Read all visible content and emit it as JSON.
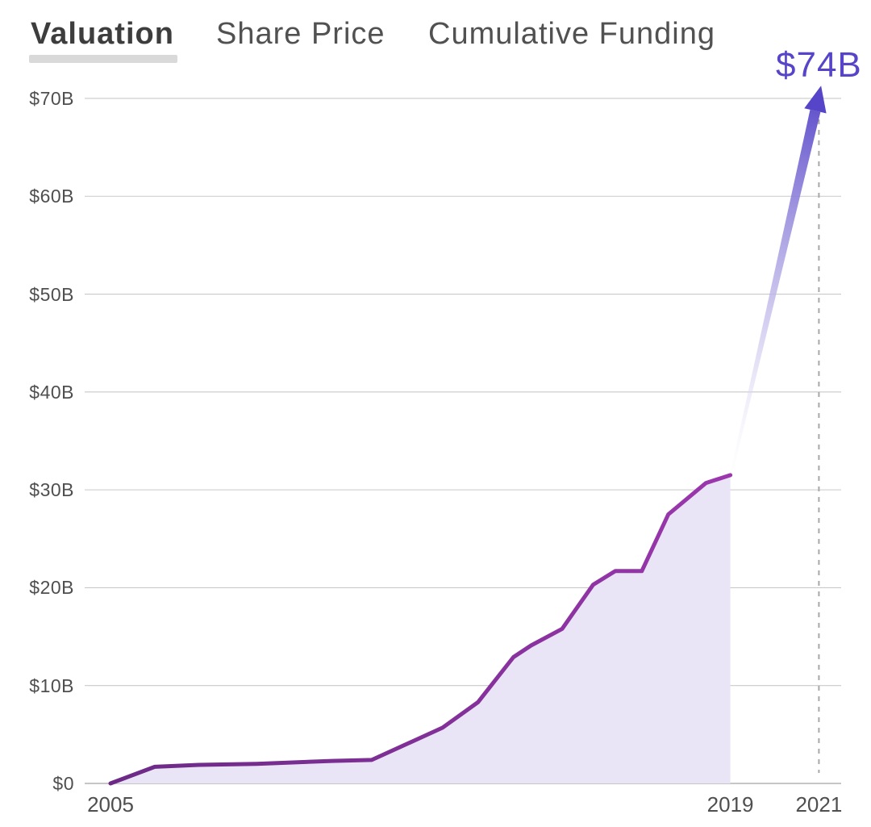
{
  "tabs": [
    {
      "label": "Valuation",
      "active": true
    },
    {
      "label": "Share Price",
      "active": false
    },
    {
      "label": "Cumulative Funding",
      "active": false
    }
  ],
  "chart_data": {
    "type": "area",
    "title": "Valuation",
    "xlabel": "",
    "ylabel": "",
    "unit": "USD billions",
    "xlim": [
      2004.4,
      2022.2
    ],
    "ylim": [
      0,
      70
    ],
    "grid": true,
    "y_ticks": [
      {
        "value": 0,
        "label": "$0"
      },
      {
        "value": 10,
        "label": "$10B"
      },
      {
        "value": 20,
        "label": "$20B"
      },
      {
        "value": 30,
        "label": "$30B"
      },
      {
        "value": 40,
        "label": "$40B"
      },
      {
        "value": 50,
        "label": "$50B"
      },
      {
        "value": 60,
        "label": "$60B"
      },
      {
        "value": 70,
        "label": "$70B"
      }
    ],
    "x_ticks": [
      {
        "year": 2005,
        "label": "2005"
      },
      {
        "year": 2019,
        "label": "2019"
      },
      {
        "year": 2021,
        "label": "2021"
      }
    ],
    "series": [
      {
        "name": "Valuation",
        "points": [
          [
            2005.0,
            0
          ],
          [
            2006.0,
            1.7
          ],
          [
            2007.0,
            1.9
          ],
          [
            2008.3,
            2.0
          ],
          [
            2010.0,
            2.3
          ],
          [
            2010.9,
            2.4
          ],
          [
            2012.5,
            5.7
          ],
          [
            2013.3,
            8.3
          ],
          [
            2014.1,
            12.9
          ],
          [
            2014.5,
            14.1
          ],
          [
            2015.2,
            15.8
          ],
          [
            2015.9,
            20.3
          ],
          [
            2016.4,
            21.7
          ],
          [
            2017.0,
            21.7
          ],
          [
            2017.6,
            27.5
          ],
          [
            2018.45,
            30.7
          ],
          [
            2019.0,
            31.5
          ]
        ]
      }
    ],
    "projection": {
      "year": 2021,
      "value": 74,
      "label": "$74B",
      "arrow_from": {
        "year": 2019.05,
        "value": 32.2
      },
      "arrow_to": {
        "year": 2021.05,
        "value": 71.3
      }
    },
    "colors": {
      "line_start": "#6c2a86",
      "line_end": "#9c37ae",
      "fill": "#e9e4f6",
      "grid": "#c9c9c9",
      "axis": "#b3b3b3",
      "dashed": "#a8a8a8",
      "accent": "#5645c8",
      "arrow_faint": "#e9e7f8",
      "tick_label": "#4f4f4f",
      "tab_active": "#3d3d3d",
      "tab_inactive": "#515151",
      "tab_underline": "#d9d9d9"
    }
  }
}
